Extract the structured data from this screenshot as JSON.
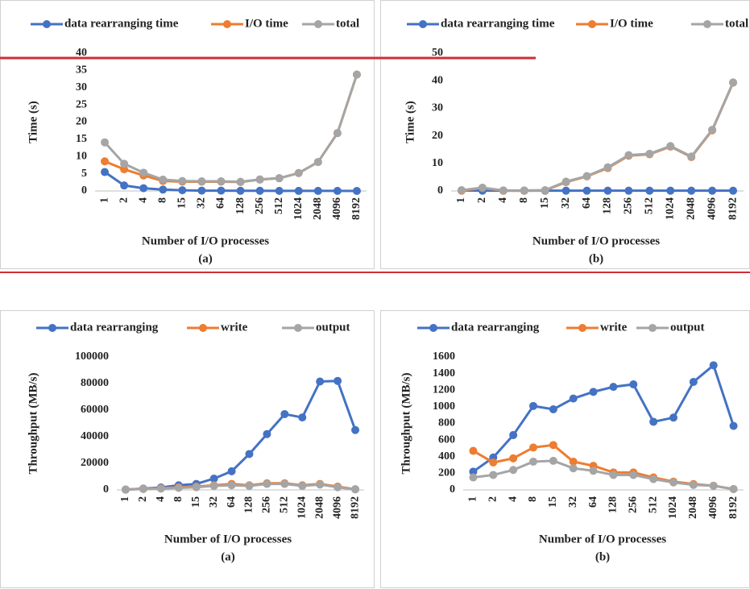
{
  "chart_data": [
    {
      "type": "line",
      "caption": "(a)",
      "x_label": "Number of I/O processes",
      "y_label": "Time (s)",
      "categories": [
        "1",
        "2",
        "4",
        "8",
        "15",
        "32",
        "64",
        "128",
        "256",
        "512",
        "1024",
        "2048",
        "4096",
        "8192"
      ],
      "ylim": [
        0,
        40
      ],
      "yticks": [
        0,
        5,
        10,
        15,
        20,
        25,
        30,
        35,
        40
      ],
      "grid": false,
      "series": [
        {
          "name": "data rearranging time",
          "color": "#4472c4",
          "values": [
            5.5,
            1.6,
            0.8,
            0.4,
            0.2,
            0.1,
            0.1,
            0.05,
            0.05,
            0.03,
            0.02,
            0.02,
            0.02,
            0.01
          ]
        },
        {
          "name": "I/O time",
          "color": "#ed7d31",
          "values": [
            8.6,
            6.3,
            4.5,
            2.9,
            2.7,
            2.7,
            2.7,
            2.6,
            3.3,
            3.7,
            5.2,
            8.4,
            16.8,
            33.8
          ]
        },
        {
          "name": "total",
          "color": "#a5a5a5",
          "values": [
            14.1,
            7.9,
            5.3,
            3.3,
            2.9,
            2.8,
            2.8,
            2.65,
            3.35,
            3.7,
            5.2,
            8.4,
            16.8,
            33.8
          ]
        }
      ]
    },
    {
      "type": "line",
      "caption": "(b)",
      "x_label": "Number of I/O processes",
      "y_label": "Time (s)",
      "categories": [
        "1",
        "2",
        "4",
        "8",
        "15",
        "32",
        "64",
        "128",
        "256",
        "512",
        "1024",
        "2048",
        "4096",
        "8192"
      ],
      "ylim": [
        0,
        50
      ],
      "yticks": [
        0,
        10,
        20,
        30,
        40,
        50
      ],
      "grid": false,
      "series": [
        {
          "name": "data rearranging time",
          "color": "#4472c4",
          "values": [
            0.2,
            0.1,
            0.1,
            0.1,
            0.1,
            0.1,
            0.1,
            0.1,
            0.1,
            0.1,
            0.1,
            0.1,
            0.1,
            0.1
          ]
        },
        {
          "name": "I/O time",
          "color": "#ed7d31",
          "values": [
            0.1,
            1.1,
            0.1,
            0.1,
            0.2,
            3.2,
            5.3,
            8.3,
            12.8,
            13.3,
            16.1,
            12.3,
            22,
            39.3
          ]
        },
        {
          "name": "total",
          "color": "#a5a5a5",
          "values": [
            0.3,
            1.2,
            0.2,
            0.2,
            0.3,
            3.4,
            5.4,
            8.6,
            13.0,
            13.5,
            16.3,
            12.5,
            22.2,
            39.4
          ]
        }
      ]
    },
    {
      "type": "line",
      "caption": "(a)",
      "x_label": "Number of I/O processes",
      "y_label": "Throughput  (MB/s)",
      "categories": [
        "1",
        "2",
        "4",
        "8",
        "15",
        "32",
        "64",
        "128",
        "256",
        "512",
        "1024",
        "2048",
        "4096",
        "8192"
      ],
      "ylim": [
        0,
        100000
      ],
      "yticks": [
        0,
        20000,
        40000,
        60000,
        80000,
        100000
      ],
      "grid": false,
      "series": [
        {
          "name": "data rearranging",
          "color": "#4472c4",
          "values": [
            200,
            1000,
            1800,
            3500,
            4500,
            8500,
            14000,
            27000,
            42000,
            57000,
            54500,
            81500,
            82000,
            45000
          ]
        },
        {
          "name": "write",
          "color": "#ed7d31",
          "values": [
            300,
            800,
            1200,
            2000,
            2500,
            3500,
            4500,
            3500,
            5000,
            5000,
            3500,
            4500,
            2500,
            500
          ]
        },
        {
          "name": "output",
          "color": "#a5a5a5",
          "values": [
            200,
            700,
            1000,
            1500,
            2000,
            3000,
            3500,
            3000,
            4500,
            4500,
            3000,
            4000,
            2000,
            400
          ]
        }
      ]
    },
    {
      "type": "line",
      "caption": "(b)",
      "x_label": "Number of I/O processes",
      "y_label": "Throughput  (MB/s)",
      "categories": [
        "1",
        "2",
        "4",
        "8",
        "15",
        "32",
        "64",
        "128",
        "256",
        "512",
        "1024",
        "2048",
        "4096",
        "8192"
      ],
      "ylim": [
        0,
        1600
      ],
      "yticks": [
        0,
        200,
        400,
        600,
        800,
        1000,
        1200,
        1400,
        1600
      ],
      "grid": false,
      "series": [
        {
          "name": "data rearranging",
          "color": "#4472c4",
          "values": [
            220,
            390,
            660,
            1010,
            970,
            1100,
            1180,
            1240,
            1270,
            820,
            870,
            1300,
            1500,
            770
          ]
        },
        {
          "name": "write",
          "color": "#ed7d31",
          "values": [
            470,
            330,
            380,
            510,
            540,
            340,
            290,
            210,
            210,
            150,
            100,
            70,
            50,
            10
          ]
        },
        {
          "name": "output",
          "color": "#a5a5a5",
          "values": [
            150,
            180,
            240,
            340,
            350,
            260,
            230,
            180,
            180,
            130,
            90,
            60,
            50,
            10
          ]
        }
      ]
    }
  ]
}
